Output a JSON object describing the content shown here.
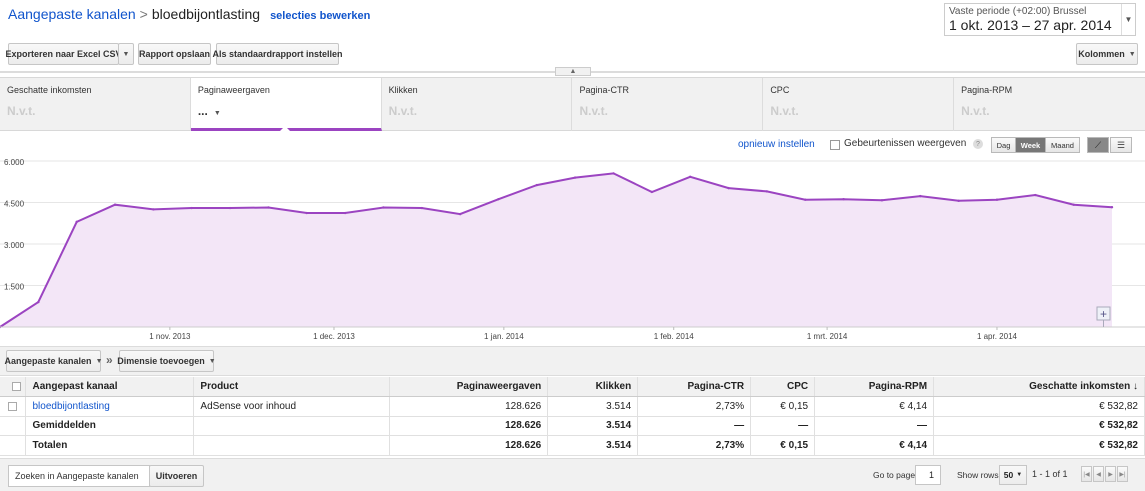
{
  "header": {
    "breadcrumb_root": "Aangepaste kanalen",
    "breadcrumb_separator": ">",
    "breadcrumb_current": "bloedbijontlasting",
    "edit_selection": "selecties bewerken"
  },
  "date_range": {
    "label": "Vaste periode (+02:00) Brussel",
    "value": "1 okt. 2013 – 27 apr. 2014"
  },
  "toolbar": {
    "export_label": "Exporteren naar Excel CSV",
    "save_label": "Rapport opslaan",
    "default_label": "Als standaardrapport instellen",
    "columns_label": "Kolommen"
  },
  "scorecards": [
    {
      "title": "Geschatte inkomsten",
      "value": "N.v.t."
    },
    {
      "title": "Paginaweergaven",
      "value": "..."
    },
    {
      "title": "Klikken",
      "value": "N.v.t."
    },
    {
      "title": "Pagina-CTR",
      "value": "N.v.t."
    },
    {
      "title": "CPC",
      "value": "N.v.t."
    },
    {
      "title": "Pagina-RPM",
      "value": "N.v.t."
    }
  ],
  "chart_controls": {
    "reset_label": "opnieuw instellen",
    "events_label": "Gebeurtenissen weergeven",
    "help_glyph": "?",
    "granularity": [
      "Dag",
      "Week",
      "Maand"
    ],
    "active_granularity": "Week"
  },
  "chart_data": {
    "type": "area",
    "color": "#9b44c1",
    "fill": "#f3e6f7",
    "ylim": [
      0,
      6000
    ],
    "y_ticks": [
      "6.000",
      "4.500",
      "3.000",
      "1.500"
    ],
    "y_tick_values": [
      6000,
      4500,
      3000,
      1500
    ],
    "x_ticks": [
      "1 nov. 2013",
      "1 dec. 2013",
      "1 jan. 2014",
      "1 feb. 2014",
      "1 mrt. 2014",
      "1 apr. 2014"
    ],
    "x_tick_weeks": [
      4.43,
      8.71,
      13.14,
      17.57,
      21.57,
      26.0
    ],
    "x_max_week": 30,
    "series": [
      {
        "values": [
          0,
          900,
          3800,
          4420,
          4250,
          4300,
          4300,
          4320,
          4120,
          4120,
          4320,
          4300,
          4080,
          4620,
          5130,
          5400,
          5550,
          4880,
          5430,
          5020,
          4900,
          4600,
          4620,
          4580,
          4730,
          4560,
          4600,
          4770,
          4420,
          4330
        ]
      }
    ]
  },
  "dimension_bar": {
    "dimension_label": "Aangepaste kanalen",
    "separator": "»",
    "add_dimension_label": "Dimensie toevoegen"
  },
  "table": {
    "columns": [
      "Aangepast kanaal",
      "Product",
      "Paginaweergaven",
      "Klikken",
      "Pagina-CTR",
      "CPC",
      "Pagina-RPM",
      "Geschatte inkomsten"
    ],
    "sort_indicator": "↓",
    "rows": [
      {
        "channel": "bloedbijontlasting",
        "product": "AdSense voor inhoud",
        "pageviews": "128.626",
        "clicks": "3.514",
        "ctr": "2,73%",
        "cpc": "€ 0,15",
        "rpm": "€ 4,14",
        "earnings": "€ 532,82"
      }
    ],
    "average_row": {
      "label": "Gemiddelden",
      "pageviews": "128.626",
      "clicks": "3.514",
      "ctr": "—",
      "cpc": "—",
      "rpm": "—",
      "earnings": "€ 532,82"
    },
    "total_row": {
      "label": "Totalen",
      "pageviews": "128.626",
      "clicks": "3.514",
      "ctr": "2,73%",
      "cpc": "€ 0,15",
      "rpm": "€ 4,14",
      "earnings": "€ 532,82"
    }
  },
  "footer": {
    "search_placeholder": "Zoeken in Aangepaste kanalen",
    "search_button": "Uitvoeren",
    "goto_label": "Go to page:",
    "goto_value": "1",
    "show_rows_label": "Show rows:",
    "show_rows_value": "50",
    "range_text": "1 - 1 of 1"
  }
}
